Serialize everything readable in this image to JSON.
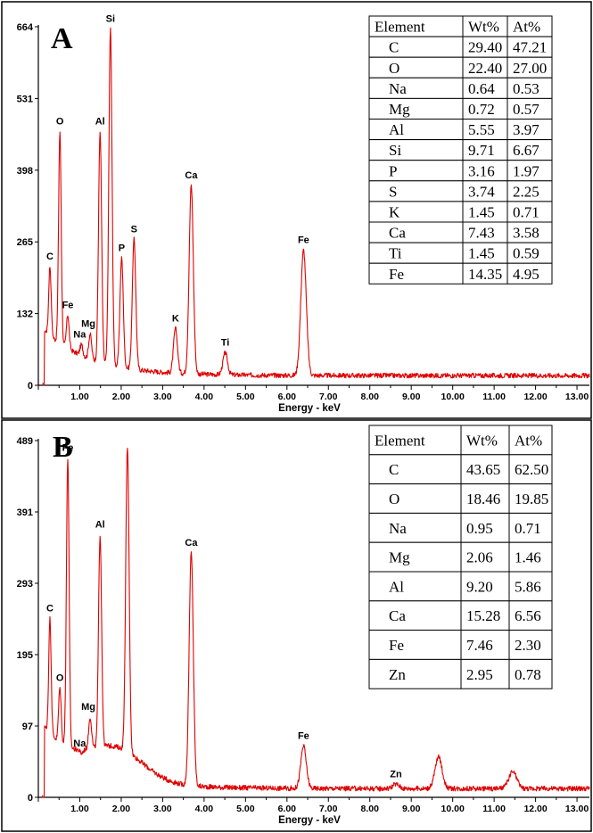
{
  "chart_data": [
    {
      "type": "line",
      "panel_label": "A",
      "xlabel": "Energy - keV",
      "ylabel": "",
      "xlim": [
        0,
        13.3
      ],
      "ylim": [
        0,
        664
      ],
      "y_ticks": [
        "664",
        "531",
        "398",
        "265",
        "132",
        "0"
      ],
      "x_ticks": [
        "1.00",
        "2.00",
        "3.00",
        "4.00",
        "5.00",
        "6.00",
        "7.00",
        "8.00",
        "9.00",
        "10.00",
        "11.00",
        "12.00",
        "13.00"
      ],
      "peaks": [
        {
          "label": "C",
          "energy": 0.28,
          "counts": 220
        },
        {
          "label": "O",
          "energy": 0.52,
          "counts": 470
        },
        {
          "label": "Fe",
          "energy": 0.71,
          "counts": 130
        },
        {
          "label": "Na",
          "energy": 1.04,
          "counts": 75
        },
        {
          "label": "Mg",
          "energy": 1.25,
          "counts": 95
        },
        {
          "label": "Al",
          "energy": 1.49,
          "counts": 470
        },
        {
          "label": "Si",
          "energy": 1.74,
          "counts": 660
        },
        {
          "label": "P",
          "energy": 2.01,
          "counts": 235
        },
        {
          "label": "S",
          "energy": 2.31,
          "counts": 270
        },
        {
          "label": "K",
          "energy": 3.31,
          "counts": 105
        },
        {
          "label": "Ca",
          "energy": 3.69,
          "counts": 370
        },
        {
          "label": "Ti",
          "energy": 4.51,
          "counts": 60
        },
        {
          "label": "Fe",
          "energy": 6.4,
          "counts": 250
        }
      ],
      "table": {
        "headers": [
          "Element",
          "Wt%",
          "At%"
        ],
        "rows": [
          [
            "C",
            "29.40",
            "47.21"
          ],
          [
            "O",
            "22.40",
            "27.00"
          ],
          [
            "Na",
            "0.64",
            "0.53"
          ],
          [
            "Mg",
            "0.72",
            "0.57"
          ],
          [
            "Al",
            "5.55",
            "3.97"
          ],
          [
            "Si",
            "9.71",
            "6.67"
          ],
          [
            "P",
            "3.16",
            "1.97"
          ],
          [
            "S",
            "3.74",
            "2.25"
          ],
          [
            "K",
            "1.45",
            "0.71"
          ],
          [
            "Ca",
            "7.43",
            "3.58"
          ],
          [
            "Ti",
            "1.45",
            "0.59"
          ],
          [
            "Fe",
            "14.35",
            "4.95"
          ]
        ]
      }
    },
    {
      "type": "line",
      "panel_label": "B",
      "xlabel": "Energy - keV",
      "ylabel": "",
      "xlim": [
        0,
        13.3
      ],
      "ylim": [
        0,
        489
      ],
      "y_ticks": [
        "489",
        "391",
        "293",
        "195",
        "97",
        "0"
      ],
      "x_ticks": [
        "1.00",
        "2.00",
        "3.00",
        "4.00",
        "5.00",
        "6.00",
        "7.00",
        "8.00",
        "9.00",
        "10.00",
        "11.00",
        "12.00",
        "13.00"
      ],
      "peaks": [
        {
          "label": "C",
          "energy": 0.28,
          "counts": 245
        },
        {
          "label": "O",
          "energy": 0.52,
          "counts": 150
        },
        {
          "label": "Fe",
          "energy": 0.71,
          "counts": 465
        },
        {
          "label": "Na",
          "energy": 1.04,
          "counts": 60
        },
        {
          "label": "Mg",
          "energy": 1.25,
          "counts": 110
        },
        {
          "label": "Al",
          "energy": 1.49,
          "counts": 360
        },
        {
          "label": "",
          "energy": 2.15,
          "counts": 480
        },
        {
          "label": "Ca",
          "energy": 3.69,
          "counts": 335
        },
        {
          "label": "Fe",
          "energy": 6.4,
          "counts": 70
        },
        {
          "label": "Zn",
          "energy": 8.63,
          "counts": 18
        },
        {
          "label": "",
          "energy": 9.66,
          "counts": 55
        },
        {
          "label": "",
          "energy": 11.45,
          "counts": 35
        }
      ],
      "table": {
        "headers": [
          "Element",
          "Wt%",
          "At%"
        ],
        "rows": [
          [
            "C",
            "43.65",
            "62.50"
          ],
          [
            "O",
            "18.46",
            "19.85"
          ],
          [
            "Na",
            "0.95",
            "0.71"
          ],
          [
            "Mg",
            "2.06",
            "1.46"
          ],
          [
            "Al",
            "9.20",
            "5.86"
          ],
          [
            "Ca",
            "15.28",
            "6.56"
          ],
          [
            "Fe",
            "7.46",
            "2.30"
          ],
          [
            "Zn",
            "2.95",
            "0.78"
          ]
        ]
      }
    }
  ],
  "colors": {
    "spectrum": "#e00000",
    "axes": "#000000",
    "background": "#ffffff"
  }
}
